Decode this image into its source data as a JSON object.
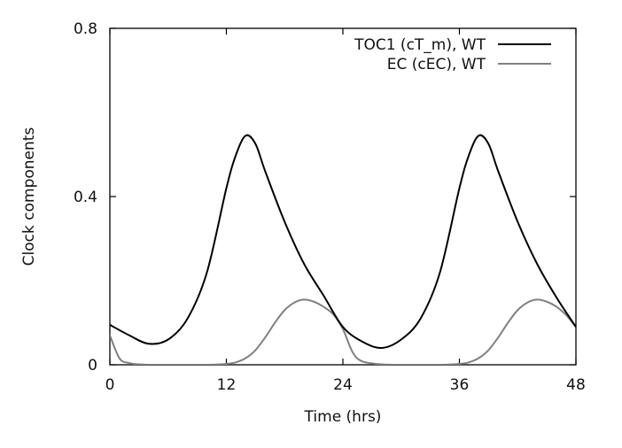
{
  "chart_data": {
    "type": "line",
    "title": "",
    "xlabel": "Time (hrs)",
    "ylabel": "Clock components",
    "xlim": [
      0,
      48
    ],
    "ylim": [
      0,
      0.8
    ],
    "xticks": [
      0,
      12,
      24,
      36,
      48
    ],
    "xtick_labels": [
      "0",
      "12",
      "24",
      "36",
      "48"
    ],
    "yticks": [
      0,
      0.4,
      0.8
    ],
    "ytick_labels": [
      "0",
      "0.4",
      "0.8"
    ],
    "grid": false,
    "legend_position": "top-right",
    "series": [
      {
        "name": "TOC1 (cT_m), WT",
        "color": "#000000",
        "x": [
          0,
          2,
          4,
          6,
          8,
          10,
          12,
          13,
          14,
          15,
          16,
          18,
          20,
          22,
          24,
          26,
          28,
          30,
          32,
          34,
          36,
          37,
          38,
          39,
          40,
          42,
          44,
          46,
          48
        ],
        "y": [
          0.095,
          0.07,
          0.05,
          0.06,
          0.11,
          0.22,
          0.42,
          0.5,
          0.545,
          0.525,
          0.46,
          0.34,
          0.24,
          0.165,
          0.09,
          0.055,
          0.04,
          0.06,
          0.11,
          0.22,
          0.42,
          0.5,
          0.545,
          0.525,
          0.46,
          0.34,
          0.24,
          0.16,
          0.09
        ]
      },
      {
        "name": "EC (cEC), WT",
        "color": "#808080",
        "x": [
          0,
          1,
          2,
          3,
          4,
          6,
          8,
          10,
          12,
          13,
          14,
          15,
          16,
          17,
          18,
          19,
          20,
          21,
          22,
          23,
          24,
          25,
          26,
          28,
          30,
          32,
          34,
          36,
          37,
          38,
          39,
          40,
          41,
          42,
          43,
          44,
          45,
          46,
          47,
          48
        ],
        "y": [
          0.07,
          0.015,
          0.004,
          0.001,
          0,
          0,
          0,
          0,
          0.002,
          0.006,
          0.016,
          0.035,
          0.065,
          0.1,
          0.13,
          0.148,
          0.155,
          0.15,
          0.138,
          0.12,
          0.085,
          0.03,
          0.008,
          0.001,
          0,
          0,
          0,
          0.002,
          0.006,
          0.016,
          0.035,
          0.065,
          0.1,
          0.13,
          0.148,
          0.155,
          0.15,
          0.138,
          0.118,
          0.09
        ]
      }
    ]
  }
}
